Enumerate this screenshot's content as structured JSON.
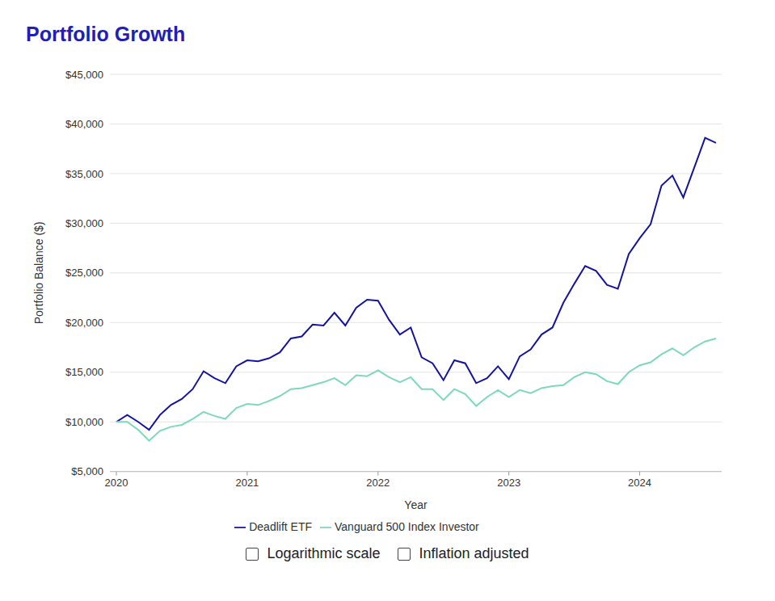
{
  "chart_data": {
    "type": "line",
    "title": "Portfolio Growth",
    "x_label": "Year",
    "y_label": "Portfolio Balance ($)",
    "categories": [
      "2020",
      null,
      null,
      null,
      null,
      null,
      null,
      null,
      null,
      null,
      null,
      null,
      "2021",
      null,
      null,
      null,
      null,
      null,
      null,
      null,
      null,
      null,
      null,
      null,
      "2022",
      null,
      null,
      null,
      null,
      null,
      null,
      null,
      null,
      null,
      null,
      null,
      "2023",
      null,
      null,
      null,
      null,
      null,
      null,
      null,
      null,
      null,
      null,
      null,
      "2024",
      null,
      null,
      null,
      null,
      null,
      null,
      null
    ],
    "series": [
      {
        "name": "Deadlift ETF",
        "color": "#1414a0",
        "values": [
          10000,
          10700,
          10000,
          9200,
          10700,
          11700,
          12300,
          13300,
          15100,
          14400,
          13900,
          15600,
          16200,
          16100,
          16400,
          17000,
          18400,
          18600,
          19800,
          19700,
          21000,
          19700,
          21500,
          22300,
          22200,
          20300,
          18800,
          19500,
          16500,
          15900,
          14200,
          16200,
          15900,
          13900,
          14400,
          15600,
          14300,
          16600,
          17300,
          18800,
          19500,
          22000,
          23900,
          25700,
          25200,
          23800,
          23400,
          26900,
          28500,
          29900,
          33800,
          34800,
          32600,
          35600,
          38600,
          38100
        ]
      },
      {
        "name": "Vanguard 500 Index Investor",
        "color": "#7dd9b7",
        "values": [
          10000,
          10000,
          9200,
          8100,
          9100,
          9500,
          9700,
          10300,
          11000,
          10600,
          10300,
          11400,
          11800,
          11700,
          12100,
          12600,
          13300,
          13400,
          13700,
          14000,
          14400,
          13700,
          14700,
          14600,
          15200,
          14500,
          14000,
          14500,
          13300,
          13300,
          12200,
          13300,
          12800,
          11600,
          12500,
          13200,
          12500,
          13200,
          12900,
          13400,
          13600,
          13700,
          14500,
          15000,
          14800,
          14100,
          13800,
          15000,
          15700,
          16000,
          16800,
          17400,
          16700,
          17500,
          18100,
          18400
        ]
      }
    ],
    "ylim": [
      5000,
      45000
    ],
    "yticks": [
      {
        "value": 5000,
        "label": "$5,000"
      },
      {
        "value": 10000,
        "label": "$10,000"
      },
      {
        "value": 15000,
        "label": "$15,000"
      },
      {
        "value": 20000,
        "label": "$20,000"
      },
      {
        "value": 25000,
        "label": "$25,000"
      },
      {
        "value": 30000,
        "label": "$30,000"
      },
      {
        "value": 35000,
        "label": "$35,000"
      },
      {
        "value": 40000,
        "label": "$40,000"
      },
      {
        "value": 45000,
        "label": "$45,000"
      }
    ],
    "grid": true,
    "legend": "bottom"
  },
  "controls": [
    {
      "label": "Logarithmic scale",
      "checked": false
    },
    {
      "label": "Inflation adjusted",
      "checked": false
    }
  ]
}
